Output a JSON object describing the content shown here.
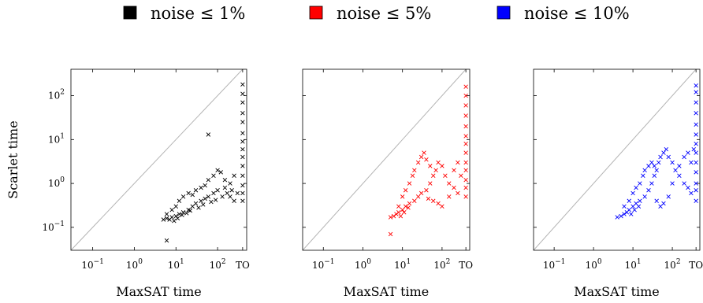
{
  "legend": [
    {
      "label": "noise ≤ 1%",
      "color": "#000000"
    },
    {
      "label": "noise ≤ 5%",
      "color": "#ff0000"
    },
    {
      "label": "noise ≤ 10%",
      "color": "#0000ff"
    }
  ],
  "chart_data": [
    {
      "type": "scatter",
      "title": "",
      "xlabel": "MaxSAT time",
      "ylabel": "Scarlet time",
      "x_scale": "log",
      "y_scale": "log",
      "xlim": [
        0.03,
        500
      ],
      "ylim": [
        0.03,
        400
      ],
      "timeout_label": "TO",
      "x_ticks": [
        {
          "value": 0.1,
          "label": "10",
          "exp": "−1"
        },
        {
          "value": 1,
          "label": "10",
          "exp": "0"
        },
        {
          "value": 10,
          "label": "10",
          "exp": "1"
        },
        {
          "value": 100,
          "label": "10",
          "exp": "2"
        },
        {
          "value": 400,
          "label": "TO",
          "exp": ""
        }
      ],
      "y_ticks": [
        {
          "value": 0.1,
          "label": "10",
          "exp": "−1"
        },
        {
          "value": 1,
          "label": "10",
          "exp": "0"
        },
        {
          "value": 10,
          "label": "10",
          "exp": "1"
        },
        {
          "value": 100,
          "label": "10",
          "exp": "2"
        }
      ],
      "series": [
        {
          "name": "noise ≤ 1%",
          "color": "#000000",
          "marker": "x",
          "points": [
            [
              5,
              0.15
            ],
            [
              6,
              0.16
            ],
            [
              7,
              0.15
            ],
            [
              8,
              0.17
            ],
            [
              10,
              0.18
            ],
            [
              12,
              0.2
            ],
            [
              15,
              0.22
            ],
            [
              20,
              0.25
            ],
            [
              25,
              0.3
            ],
            [
              30,
              0.35
            ],
            [
              40,
              0.4
            ],
            [
              50,
              0.45
            ],
            [
              60,
              0.5
            ],
            [
              80,
              0.6
            ],
            [
              100,
              0.7
            ],
            [
              150,
              0.8
            ],
            [
              200,
              1
            ],
            [
              250,
              1.5
            ],
            [
              6,
              0.2
            ],
            [
              8,
              0.25
            ],
            [
              10,
              0.3
            ],
            [
              12,
              0.4
            ],
            [
              15,
              0.5
            ],
            [
              20,
              0.6
            ],
            [
              25,
              0.55
            ],
            [
              30,
              0.7
            ],
            [
              40,
              0.8
            ],
            [
              50,
              0.9
            ],
            [
              60,
              1.2
            ],
            [
              80,
              1.5
            ],
            [
              100,
              2
            ],
            [
              120,
              1.8
            ],
            [
              150,
              1.2
            ],
            [
              200,
              0.5
            ],
            [
              250,
              0.4
            ],
            [
              300,
              0.6
            ],
            [
              9,
              0.14
            ],
            [
              11,
              0.16
            ],
            [
              14,
              0.19
            ],
            [
              18,
              0.21
            ],
            [
              22,
              0.24
            ],
            [
              35,
              0.28
            ],
            [
              45,
              0.33
            ],
            [
              70,
              0.38
            ],
            [
              90,
              0.42
            ],
            [
              130,
              0.5
            ],
            [
              170,
              0.6
            ],
            [
              220,
              0.7
            ],
            [
              60,
              13
            ],
            [
              6,
              0.05
            ],
            [
              400,
              0.4
            ],
            [
              400,
              0.6
            ],
            [
              400,
              0.9
            ],
            [
              400,
              1.5
            ],
            [
              400,
              2.5
            ],
            [
              400,
              4
            ],
            [
              400,
              6
            ],
            [
              400,
              9
            ],
            [
              400,
              14
            ],
            [
              400,
              25
            ],
            [
              400,
              40
            ],
            [
              400,
              70
            ],
            [
              400,
              110
            ],
            [
              400,
              180
            ]
          ]
        }
      ]
    },
    {
      "type": "scatter",
      "title": "",
      "xlabel": "MaxSAT time",
      "ylabel": "",
      "x_scale": "log",
      "y_scale": "log",
      "xlim": [
        0.03,
        500
      ],
      "ylim": [
        0.03,
        400
      ],
      "timeout_label": "TO",
      "x_ticks": [
        {
          "value": 0.1,
          "label": "10",
          "exp": "−1"
        },
        {
          "value": 1,
          "label": "10",
          "exp": "0"
        },
        {
          "value": 10,
          "label": "10",
          "exp": "1"
        },
        {
          "value": 100,
          "label": "10",
          "exp": "2"
        },
        {
          "value": 400,
          "label": "TO",
          "exp": ""
        }
      ],
      "y_ticks": [
        {
          "value": 0.1,
          "label": "",
          "exp": ""
        },
        {
          "value": 1,
          "label": "",
          "exp": ""
        },
        {
          "value": 10,
          "label": "",
          "exp": ""
        },
        {
          "value": 100,
          "label": "",
          "exp": ""
        }
      ],
      "series": [
        {
          "name": "noise ≤ 5%",
          "color": "#ff0000",
          "marker": "x",
          "points": [
            [
              5,
              0.17
            ],
            [
              6,
              0.18
            ],
            [
              7,
              0.2
            ],
            [
              8,
              0.22
            ],
            [
              10,
              0.25
            ],
            [
              12,
              0.3
            ],
            [
              15,
              0.35
            ],
            [
              20,
              0.4
            ],
            [
              25,
              0.5
            ],
            [
              30,
              0.6
            ],
            [
              40,
              0.7
            ],
            [
              50,
              1
            ],
            [
              60,
              1.5
            ],
            [
              70,
              2
            ],
            [
              80,
              3
            ],
            [
              100,
              2.5
            ],
            [
              120,
              1.5
            ],
            [
              150,
              1
            ],
            [
              200,
              0.8
            ],
            [
              250,
              0.6
            ],
            [
              8,
              0.3
            ],
            [
              10,
              0.5
            ],
            [
              12,
              0.7
            ],
            [
              15,
              1
            ],
            [
              18,
              1.5
            ],
            [
              20,
              2
            ],
            [
              25,
              3
            ],
            [
              30,
              4
            ],
            [
              35,
              5
            ],
            [
              40,
              3.5
            ],
            [
              50,
              2.5
            ],
            [
              60,
              0.4
            ],
            [
              80,
              0.35
            ],
            [
              100,
              0.3
            ],
            [
              150,
              0.5
            ],
            [
              200,
              2
            ],
            [
              250,
              3
            ],
            [
              300,
              1.5
            ],
            [
              9,
              0.18
            ],
            [
              11,
              0.22
            ],
            [
              14,
              0.28
            ],
            [
              45,
              0.45
            ],
            [
              5,
              0.07
            ],
            [
              400,
              0.5
            ],
            [
              400,
              0.8
            ],
            [
              400,
              1.2
            ],
            [
              400,
              2
            ],
            [
              400,
              3
            ],
            [
              400,
              5
            ],
            [
              400,
              8
            ],
            [
              400,
              12
            ],
            [
              400,
              20
            ],
            [
              400,
              35
            ],
            [
              400,
              60
            ],
            [
              400,
              100
            ],
            [
              400,
              160
            ]
          ]
        }
      ]
    },
    {
      "type": "scatter",
      "title": "",
      "xlabel": "MaxSAT time",
      "ylabel": "",
      "x_scale": "log",
      "y_scale": "log",
      "xlim": [
        0.03,
        500
      ],
      "ylim": [
        0.03,
        400
      ],
      "timeout_label": "TO",
      "x_ticks": [
        {
          "value": 0.1,
          "label": "10",
          "exp": "−1"
        },
        {
          "value": 1,
          "label": "10",
          "exp": "0"
        },
        {
          "value": 10,
          "label": "10",
          "exp": "1"
        },
        {
          "value": 100,
          "label": "10",
          "exp": "2"
        },
        {
          "value": 400,
          "label": "TO",
          "exp": ""
        }
      ],
      "y_ticks": [
        {
          "value": 0.1,
          "label": "",
          "exp": ""
        },
        {
          "value": 1,
          "label": "",
          "exp": ""
        },
        {
          "value": 10,
          "label": "",
          "exp": ""
        },
        {
          "value": 100,
          "label": "",
          "exp": ""
        }
      ],
      "series": [
        {
          "name": "noise ≤ 10%",
          "color": "#0000ff",
          "marker": "x",
          "points": [
            [
              4,
              0.17
            ],
            [
              5,
              0.18
            ],
            [
              6,
              0.2
            ],
            [
              7,
              0.22
            ],
            [
              8,
              0.25
            ],
            [
              10,
              0.3
            ],
            [
              12,
              0.35
            ],
            [
              15,
              0.4
            ],
            [
              20,
              0.5
            ],
            [
              25,
              0.7
            ],
            [
              30,
              1
            ],
            [
              35,
              1.5
            ],
            [
              40,
              2
            ],
            [
              45,
              3
            ],
            [
              50,
              4
            ],
            [
              60,
              5
            ],
            [
              70,
              6
            ],
            [
              80,
              4
            ],
            [
              100,
              3
            ],
            [
              120,
              2
            ],
            [
              150,
              1.5
            ],
            [
              200,
              1
            ],
            [
              250,
              0.8
            ],
            [
              300,
              0.6
            ],
            [
              6,
              0.3
            ],
            [
              8,
              0.4
            ],
            [
              10,
              0.6
            ],
            [
              12,
              0.8
            ],
            [
              15,
              1
            ],
            [
              18,
              1.5
            ],
            [
              20,
              2
            ],
            [
              25,
              2.5
            ],
            [
              30,
              3
            ],
            [
              35,
              2.5
            ],
            [
              40,
              0.4
            ],
            [
              50,
              0.3
            ],
            [
              60,
              0.35
            ],
            [
              80,
              0.5
            ],
            [
              100,
              1
            ],
            [
              150,
              2.5
            ],
            [
              200,
              4
            ],
            [
              250,
              5
            ],
            [
              300,
              3
            ],
            [
              350,
              6
            ],
            [
              9,
              0.2
            ],
            [
              11,
              0.25
            ],
            [
              14,
              0.3
            ],
            [
              400,
              0.4
            ],
            [
              400,
              0.7
            ],
            [
              400,
              1
            ],
            [
              400,
              1.8
            ],
            [
              400,
              3
            ],
            [
              400,
              5
            ],
            [
              400,
              8
            ],
            [
              400,
              13
            ],
            [
              400,
              22
            ],
            [
              400,
              40
            ],
            [
              400,
              70
            ],
            [
              400,
              120
            ],
            [
              400,
              170
            ]
          ]
        }
      ]
    }
  ]
}
